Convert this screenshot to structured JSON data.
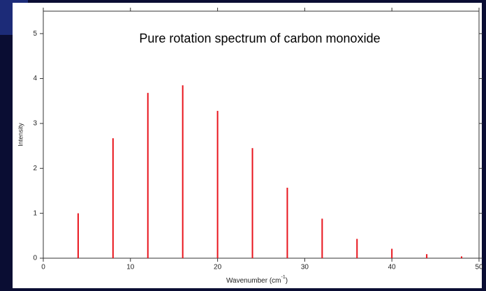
{
  "chart_data": {
    "type": "stem",
    "title": "Pure rotation spectrum of carbon monoxide",
    "xlabel": {
      "text": "Wavenumber (cm",
      "sup": "-1",
      "end": ")"
    },
    "ylabel": "Intensity",
    "x": [
      4,
      8,
      12,
      16,
      20,
      24,
      28,
      32,
      36,
      40,
      44,
      48
    ],
    "values": [
      1.0,
      2.67,
      3.68,
      3.85,
      3.28,
      2.45,
      1.57,
      0.88,
      0.43,
      0.21,
      0.09,
      0.04
    ],
    "color": "#e8141c",
    "xlim": [
      0,
      50
    ],
    "xticks": [
      0,
      10,
      20,
      30,
      40,
      50
    ],
    "ylim": [
      0,
      5.5
    ],
    "yticks": [
      0,
      1,
      2,
      3,
      4,
      5
    ]
  }
}
